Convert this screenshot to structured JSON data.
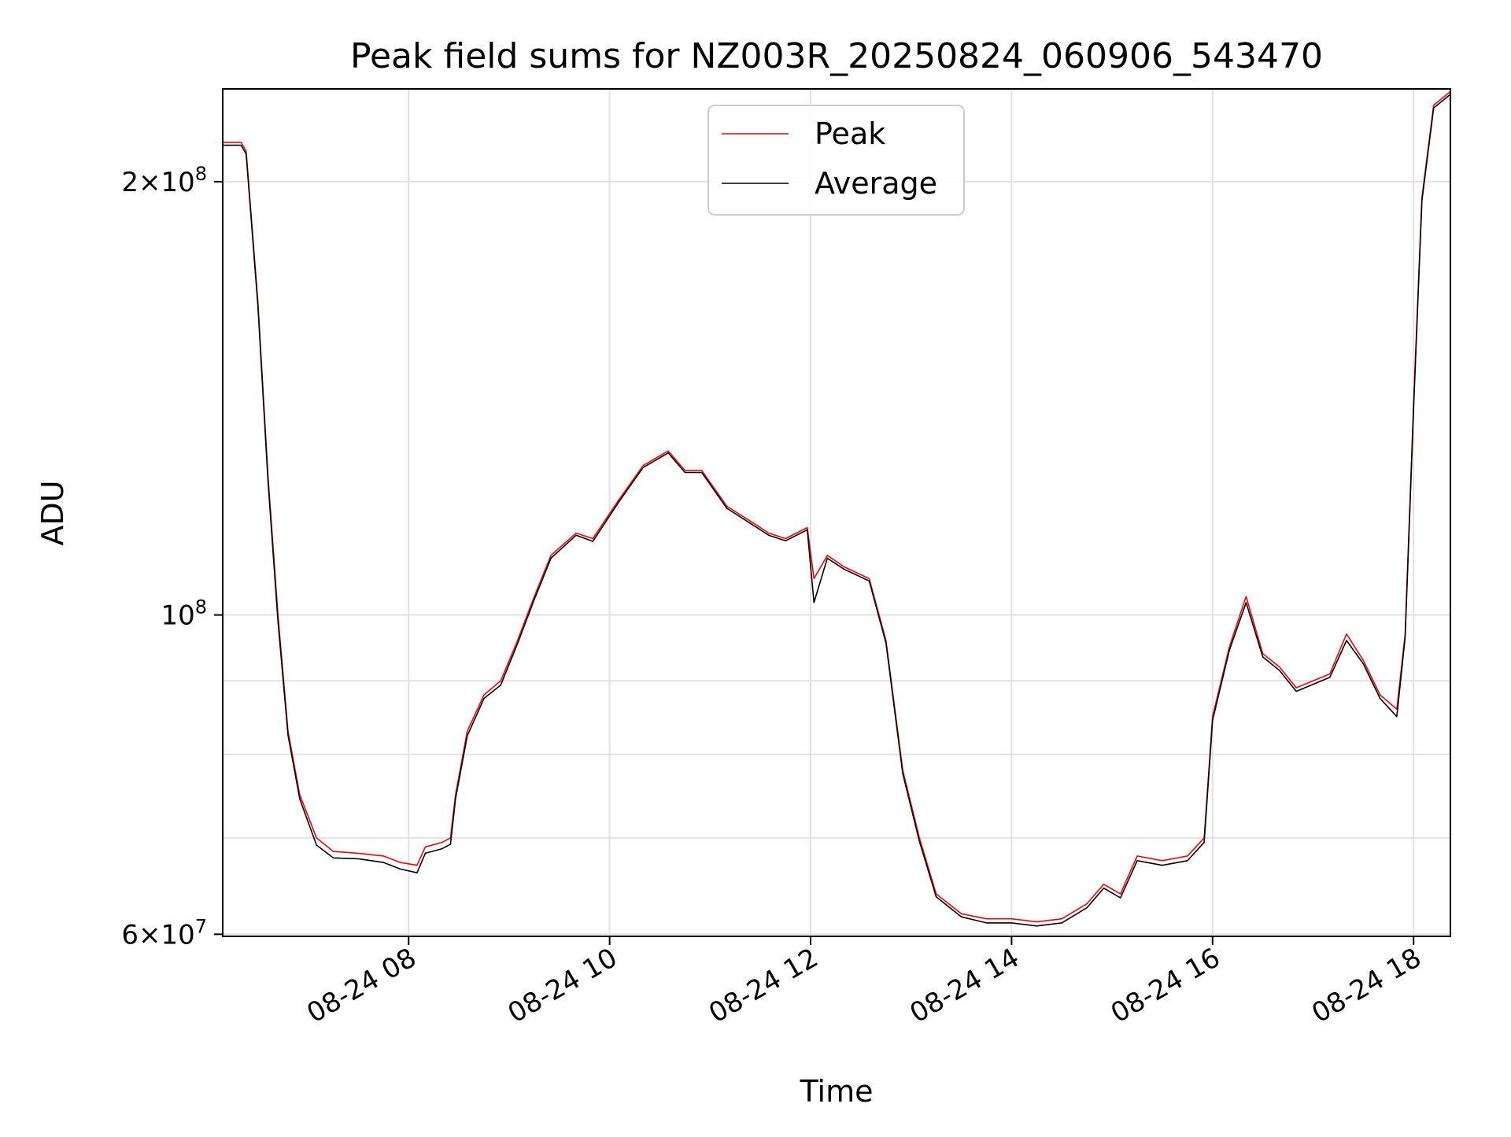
{
  "chart_data": {
    "type": "line",
    "title": "Peak field sums for NZ003R_20250824_060906_543470",
    "xlabel": "Time",
    "ylabel": "ADU",
    "yscale": "log",
    "xlim": [
      "2025-08-24 06:09",
      "2025-08-24 18:22"
    ],
    "ylim": [
      59800000,
      232000000
    ],
    "grid": true,
    "legend_position": "top-center",
    "x_ticks": [
      {
        "value": "2025-08-24 08:00",
        "label": "08-24 08"
      },
      {
        "value": "2025-08-24 10:00",
        "label": "08-24 10"
      },
      {
        "value": "2025-08-24 12:00",
        "label": "08-24 12"
      },
      {
        "value": "2025-08-24 14:00",
        "label": "08-24 14"
      },
      {
        "value": "2025-08-24 16:00",
        "label": "08-24 16"
      },
      {
        "value": "2025-08-24 18:00",
        "label": "08-24 18"
      }
    ],
    "y_ticks": [
      {
        "value": 60000000,
        "label_base": "6×10",
        "label_exp": "7"
      },
      {
        "value": 100000000,
        "label_base": "10",
        "label_exp": "8"
      },
      {
        "value": 200000000,
        "label_base": "2×10",
        "label_exp": "8"
      }
    ],
    "y_minor_grid": [
      70000000,
      80000000,
      90000000
    ],
    "series": [
      {
        "name": "Peak",
        "color": "#ff0000",
        "points": [
          [
            "2025-08-24 06:09",
            213000000
          ],
          [
            "2025-08-24 06:20",
            213000000
          ],
          [
            "2025-08-24 06:23",
            210000000
          ],
          [
            "2025-08-24 06:30",
            165000000
          ],
          [
            "2025-08-24 06:36",
            125000000
          ],
          [
            "2025-08-24 06:42",
            100000000
          ],
          [
            "2025-08-24 06:48",
            83000000
          ],
          [
            "2025-08-24 06:55",
            75000000
          ],
          [
            "2025-08-24 07:05",
            70000000
          ],
          [
            "2025-08-24 07:15",
            68500000
          ],
          [
            "2025-08-24 07:30",
            68300000
          ],
          [
            "2025-08-24 07:45",
            68000000
          ],
          [
            "2025-08-24 07:55",
            67300000
          ],
          [
            "2025-08-24 08:05",
            67000000
          ],
          [
            "2025-08-24 08:10",
            69000000
          ],
          [
            "2025-08-24 08:20",
            69500000
          ],
          [
            "2025-08-24 08:25",
            70000000
          ],
          [
            "2025-08-24 08:28",
            75000000
          ],
          [
            "2025-08-24 08:35",
            83000000
          ],
          [
            "2025-08-24 08:45",
            88000000
          ],
          [
            "2025-08-24 08:55",
            90000000
          ],
          [
            "2025-08-24 09:05",
            96000000
          ],
          [
            "2025-08-24 09:15",
            103000000
          ],
          [
            "2025-08-24 09:25",
            110000000
          ],
          [
            "2025-08-24 09:40",
            114000000
          ],
          [
            "2025-08-24 09:50",
            113000000
          ],
          [
            "2025-08-24 10:05",
            120000000
          ],
          [
            "2025-08-24 10:20",
            127000000
          ],
          [
            "2025-08-24 10:35",
            130000000
          ],
          [
            "2025-08-24 10:45",
            126000000
          ],
          [
            "2025-08-24 10:55",
            126000000
          ],
          [
            "2025-08-24 11:10",
            119000000
          ],
          [
            "2025-08-24 11:25",
            116000000
          ],
          [
            "2025-08-24 11:35",
            114000000
          ],
          [
            "2025-08-24 11:45",
            113000000
          ],
          [
            "2025-08-24 11:58",
            115000000
          ],
          [
            "2025-08-24 12:02",
            106000000
          ],
          [
            "2025-08-24 12:10",
            110000000
          ],
          [
            "2025-08-24 12:20",
            108000000
          ],
          [
            "2025-08-24 12:35",
            106000000
          ],
          [
            "2025-08-24 12:45",
            96000000
          ],
          [
            "2025-08-24 12:55",
            78000000
          ],
          [
            "2025-08-24 13:05",
            70000000
          ],
          [
            "2025-08-24 13:15",
            64000000
          ],
          [
            "2025-08-24 13:30",
            62000000
          ],
          [
            "2025-08-24 13:45",
            61500000
          ],
          [
            "2025-08-24 14:00",
            61500000
          ],
          [
            "2025-08-24 14:15",
            61200000
          ],
          [
            "2025-08-24 14:30",
            61500000
          ],
          [
            "2025-08-24 14:45",
            63000000
          ],
          [
            "2025-08-24 14:55",
            65000000
          ],
          [
            "2025-08-24 15:05",
            64000000
          ],
          [
            "2025-08-24 15:15",
            68000000
          ],
          [
            "2025-08-24 15:30",
            67500000
          ],
          [
            "2025-08-24 15:45",
            68000000
          ],
          [
            "2025-08-24 15:55",
            70000000
          ],
          [
            "2025-08-24 16:00",
            85000000
          ],
          [
            "2025-08-24 16:10",
            95000000
          ],
          [
            "2025-08-24 16:20",
            103000000
          ],
          [
            "2025-08-24 16:30",
            94000000
          ],
          [
            "2025-08-24 16:40",
            92000000
          ],
          [
            "2025-08-24 16:50",
            89000000
          ],
          [
            "2025-08-24 17:00",
            90000000
          ],
          [
            "2025-08-24 17:10",
            91000000
          ],
          [
            "2025-08-24 17:20",
            97000000
          ],
          [
            "2025-08-24 17:30",
            93000000
          ],
          [
            "2025-08-24 17:40",
            88000000
          ],
          [
            "2025-08-24 17:50",
            86000000
          ],
          [
            "2025-08-24 17:55",
            97000000
          ],
          [
            "2025-08-24 18:00",
            140000000
          ],
          [
            "2025-08-24 18:05",
            195000000
          ],
          [
            "2025-08-24 18:12",
            226000000
          ],
          [
            "2025-08-24 18:22",
            231000000
          ]
        ]
      },
      {
        "name": "Average",
        "color": "#000000",
        "points": [
          [
            "2025-08-24 06:09",
            212000000
          ],
          [
            "2025-08-24 06:20",
            212000000
          ],
          [
            "2025-08-24 06:23",
            209000000
          ],
          [
            "2025-08-24 06:30",
            164000000
          ],
          [
            "2025-08-24 06:36",
            124000000
          ],
          [
            "2025-08-24 06:42",
            99000000
          ],
          [
            "2025-08-24 06:48",
            82500000
          ],
          [
            "2025-08-24 06:55",
            74500000
          ],
          [
            "2025-08-24 07:05",
            69200000
          ],
          [
            "2025-08-24 07:15",
            67800000
          ],
          [
            "2025-08-24 07:30",
            67700000
          ],
          [
            "2025-08-24 07:45",
            67300000
          ],
          [
            "2025-08-24 07:55",
            66600000
          ],
          [
            "2025-08-24 08:05",
            66200000
          ],
          [
            "2025-08-24 08:10",
            68300000
          ],
          [
            "2025-08-24 08:20",
            68800000
          ],
          [
            "2025-08-24 08:25",
            69300000
          ],
          [
            "2025-08-24 08:28",
            74500000
          ],
          [
            "2025-08-24 08:35",
            82400000
          ],
          [
            "2025-08-24 08:45",
            87500000
          ],
          [
            "2025-08-24 08:55",
            89400000
          ],
          [
            "2025-08-24 09:05",
            95500000
          ],
          [
            "2025-08-24 09:15",
            102500000
          ],
          [
            "2025-08-24 09:25",
            109500000
          ],
          [
            "2025-08-24 09:40",
            113600000
          ],
          [
            "2025-08-24 09:50",
            112500000
          ],
          [
            "2025-08-24 10:05",
            119600000
          ],
          [
            "2025-08-24 10:20",
            126600000
          ],
          [
            "2025-08-24 10:35",
            129600000
          ],
          [
            "2025-08-24 10:45",
            125600000
          ],
          [
            "2025-08-24 10:55",
            125600000
          ],
          [
            "2025-08-24 11:10",
            118600000
          ],
          [
            "2025-08-24 11:25",
            115600000
          ],
          [
            "2025-08-24 11:35",
            113600000
          ],
          [
            "2025-08-24 11:45",
            112600000
          ],
          [
            "2025-08-24 11:58",
            114600000
          ],
          [
            "2025-08-24 12:02",
            102000000
          ],
          [
            "2025-08-24 12:10",
            109500000
          ],
          [
            "2025-08-24 12:20",
            107600000
          ],
          [
            "2025-08-24 12:35",
            105600000
          ],
          [
            "2025-08-24 12:45",
            95600000
          ],
          [
            "2025-08-24 12:55",
            77600000
          ],
          [
            "2025-08-24 13:05",
            69600000
          ],
          [
            "2025-08-24 13:15",
            63700000
          ],
          [
            "2025-08-24 13:30",
            61700000
          ],
          [
            "2025-08-24 13:45",
            61100000
          ],
          [
            "2025-08-24 14:00",
            61100000
          ],
          [
            "2025-08-24 14:15",
            60800000
          ],
          [
            "2025-08-24 14:30",
            61100000
          ],
          [
            "2025-08-24 14:45",
            62600000
          ],
          [
            "2025-08-24 14:55",
            64600000
          ],
          [
            "2025-08-24 15:05",
            63600000
          ],
          [
            "2025-08-24 15:15",
            67500000
          ],
          [
            "2025-08-24 15:30",
            67000000
          ],
          [
            "2025-08-24 15:45",
            67500000
          ],
          [
            "2025-08-24 15:55",
            69500000
          ],
          [
            "2025-08-24 16:00",
            84500000
          ],
          [
            "2025-08-24 16:10",
            94500000
          ],
          [
            "2025-08-24 16:20",
            102000000
          ],
          [
            "2025-08-24 16:30",
            93500000
          ],
          [
            "2025-08-24 16:40",
            91500000
          ],
          [
            "2025-08-24 16:50",
            88500000
          ],
          [
            "2025-08-24 17:00",
            89500000
          ],
          [
            "2025-08-24 17:10",
            90500000
          ],
          [
            "2025-08-24 17:20",
            96000000
          ],
          [
            "2025-08-24 17:30",
            92500000
          ],
          [
            "2025-08-24 17:40",
            87500000
          ],
          [
            "2025-08-24 17:50",
            85000000
          ],
          [
            "2025-08-24 17:55",
            96500000
          ],
          [
            "2025-08-24 18:00",
            139000000
          ],
          [
            "2025-08-24 18:05",
            194000000
          ],
          [
            "2025-08-24 18:12",
            225000000
          ],
          [
            "2025-08-24 18:22",
            230000000
          ]
        ]
      }
    ]
  }
}
